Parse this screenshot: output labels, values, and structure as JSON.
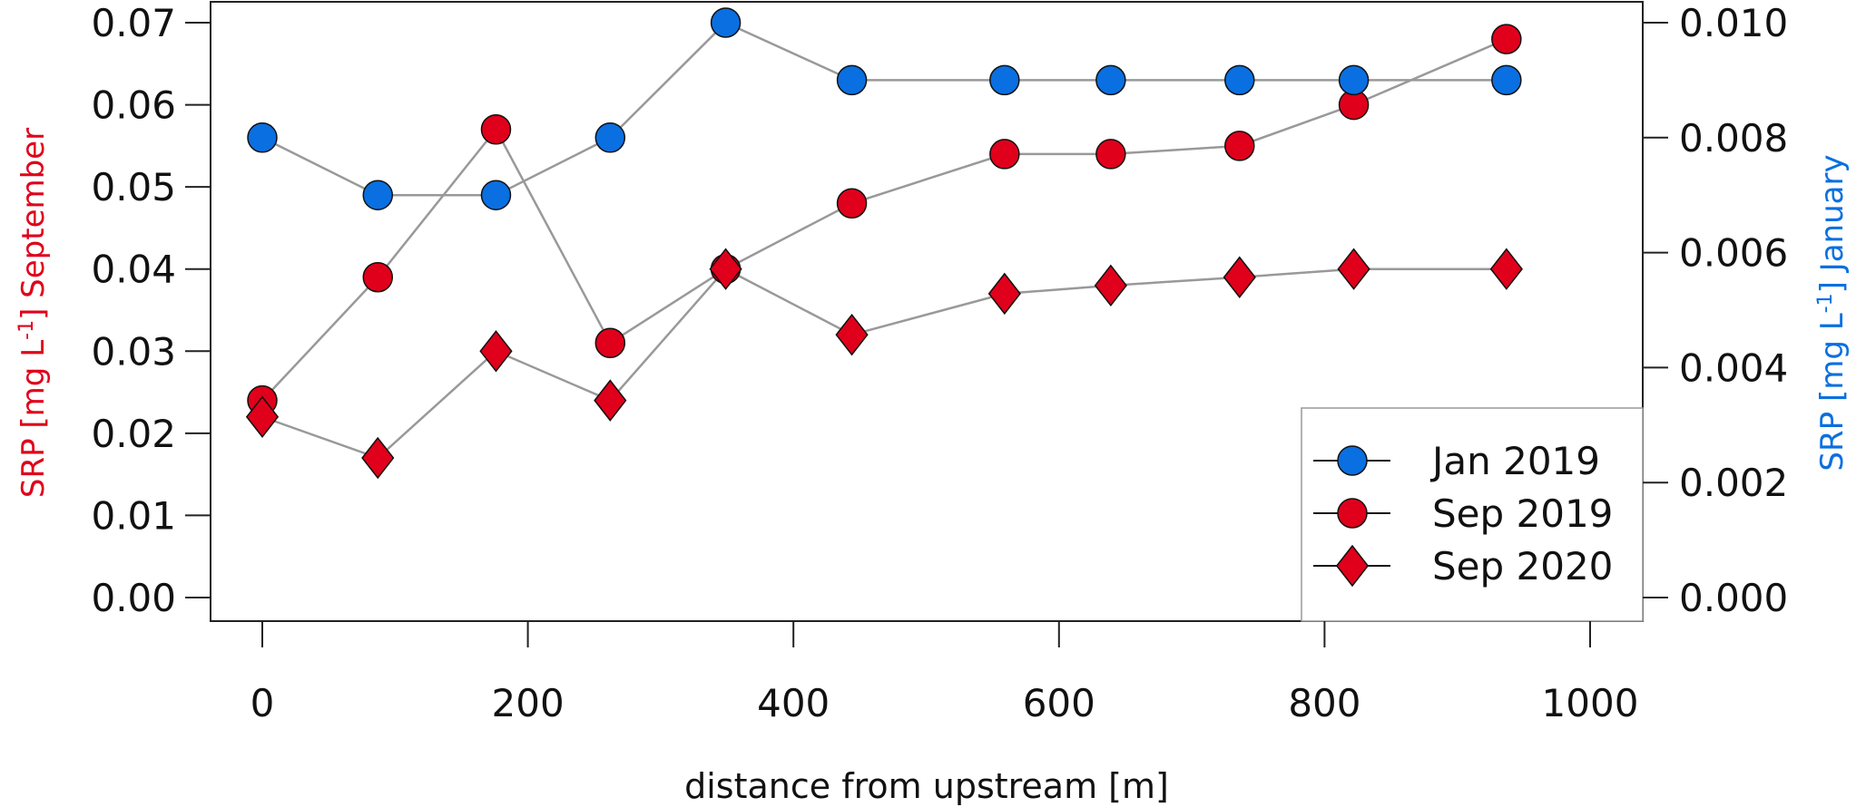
{
  "chart_data": {
    "type": "line",
    "title": "",
    "xlabel": "distance from upstream [m]",
    "ylabel_left": {
      "prefix": "SRP [mg L",
      "sup": "-1",
      "suffix": "] September"
    },
    "ylabel_right": {
      "prefix": "SRP [mg L",
      "sup": "-1",
      "suffix": "] January"
    },
    "xlim": [
      0,
      1000
    ],
    "ylim_left": [
      0,
      0.07
    ],
    "ylim_right": [
      0,
      0.01
    ],
    "x_ticks": [
      "0",
      "200",
      "400",
      "600",
      "800",
      "1000"
    ],
    "y_left_ticks": [
      "0.00",
      "0.01",
      "0.02",
      "0.03",
      "0.04",
      "0.05",
      "0.06",
      "0.07"
    ],
    "y_right_ticks": [
      "0.000",
      "0.002",
      "0.004",
      "0.006",
      "0.008",
      "0.010"
    ],
    "x": [
      0,
      87,
      176,
      262,
      349,
      444,
      559,
      639,
      736,
      822,
      937
    ],
    "series": [
      {
        "name": "Jan 2019",
        "axis": "right",
        "marker": "circle",
        "color": "#0a6fe0",
        "values": [
          0.008,
          0.007,
          0.007,
          0.008,
          0.01,
          0.009,
          0.009,
          0.009,
          0.009,
          0.009,
          0.009
        ]
      },
      {
        "name": "Sep 2019",
        "axis": "left",
        "marker": "circle",
        "color": "#e0001b",
        "values": [
          0.024,
          0.039,
          0.057,
          0.031,
          0.04,
          0.048,
          0.054,
          0.054,
          0.055,
          0.06,
          0.068
        ]
      },
      {
        "name": "Sep 2020",
        "axis": "left",
        "marker": "diamond",
        "color": "#e0001b",
        "values": [
          0.022,
          0.017,
          0.03,
          0.024,
          0.04,
          0.032,
          0.037,
          0.038,
          0.039,
          0.04,
          0.04
        ]
      }
    ],
    "legend": {
      "placement": "bottom-right",
      "entries": [
        "Jan 2019",
        "Sep 2019",
        "Sep 2020"
      ]
    },
    "colors": {
      "left_axis": "#e0001b",
      "right_axis": "#0a6fe0",
      "line": "#999999"
    }
  }
}
